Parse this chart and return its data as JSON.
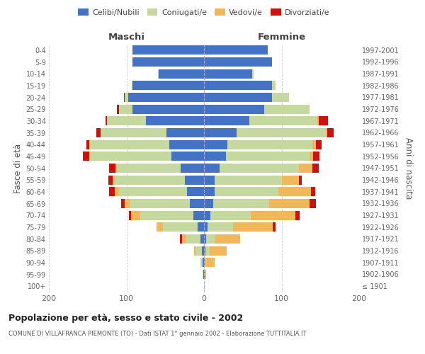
{
  "age_groups": [
    "100+",
    "95-99",
    "90-94",
    "85-89",
    "80-84",
    "75-79",
    "70-74",
    "65-69",
    "60-64",
    "55-59",
    "50-54",
    "45-49",
    "40-44",
    "35-39",
    "30-34",
    "25-29",
    "20-24",
    "15-19",
    "10-14",
    "5-9",
    "0-4"
  ],
  "birth_years": [
    "≤ 1901",
    "1902-1906",
    "1907-1911",
    "1912-1916",
    "1917-1921",
    "1922-1926",
    "1927-1931",
    "1932-1936",
    "1937-1941",
    "1942-1946",
    "1947-1951",
    "1952-1956",
    "1957-1961",
    "1962-1966",
    "1967-1971",
    "1972-1976",
    "1977-1981",
    "1982-1986",
    "1987-1991",
    "1992-1996",
    "1997-2001"
  ],
  "males": {
    "celibi": [
      0,
      1,
      2,
      3,
      5,
      8,
      14,
      18,
      22,
      25,
      30,
      42,
      45,
      48,
      75,
      92,
      98,
      92,
      58,
      92,
      92
    ],
    "coniugati": [
      0,
      1,
      3,
      8,
      18,
      45,
      68,
      78,
      88,
      90,
      82,
      105,
      102,
      85,
      50,
      18,
      4,
      1,
      1,
      0,
      0
    ],
    "vedovi": [
      0,
      0,
      0,
      2,
      5,
      8,
      12,
      6,
      5,
      3,
      2,
      1,
      1,
      0,
      0,
      0,
      0,
      0,
      0,
      0,
      0
    ],
    "divorziati": [
      0,
      0,
      0,
      0,
      3,
      0,
      3,
      5,
      7,
      5,
      8,
      8,
      4,
      6,
      2,
      2,
      1,
      0,
      0,
      0,
      0
    ]
  },
  "females": {
    "nubili": [
      0,
      1,
      1,
      2,
      3,
      5,
      8,
      12,
      14,
      14,
      20,
      28,
      30,
      42,
      58,
      78,
      88,
      88,
      62,
      88,
      82
    ],
    "coniugate": [
      0,
      0,
      1,
      5,
      12,
      32,
      52,
      72,
      82,
      86,
      102,
      108,
      110,
      115,
      88,
      58,
      22,
      4,
      2,
      0,
      0
    ],
    "vedove": [
      0,
      2,
      12,
      22,
      32,
      52,
      58,
      52,
      42,
      22,
      18,
      5,
      4,
      2,
      2,
      0,
      0,
      0,
      0,
      0,
      0
    ],
    "divorziate": [
      0,
      0,
      0,
      0,
      0,
      3,
      5,
      8,
      5,
      4,
      8,
      8,
      8,
      8,
      12,
      0,
      0,
      0,
      0,
      0,
      0
    ]
  },
  "color_celibi": "#4472c4",
  "color_coniugati": "#c5d8a0",
  "color_vedovi": "#f0b85a",
  "color_divorziati": "#cc1111",
  "xlim": 200,
  "title": "Popolazione per età, sesso e stato civile - 2002",
  "subtitle": "COMUNE DI VILLAFRANCA PIEMONTE (TO) - Dati ISTAT 1° gennaio 2002 - Elaborazione TUTTITALIA.IT",
  "ylabel_left": "Fasce di età",
  "ylabel_right": "Anni di nascita",
  "xlabel_maschi": "Maschi",
  "xlabel_femmine": "Femmine",
  "legend_labels": [
    "Celibi/Nubili",
    "Coniugati/e",
    "Vedovi/e",
    "Divorziati/e"
  ],
  "background_color": "#ffffff",
  "grid_color": "#cccccc"
}
